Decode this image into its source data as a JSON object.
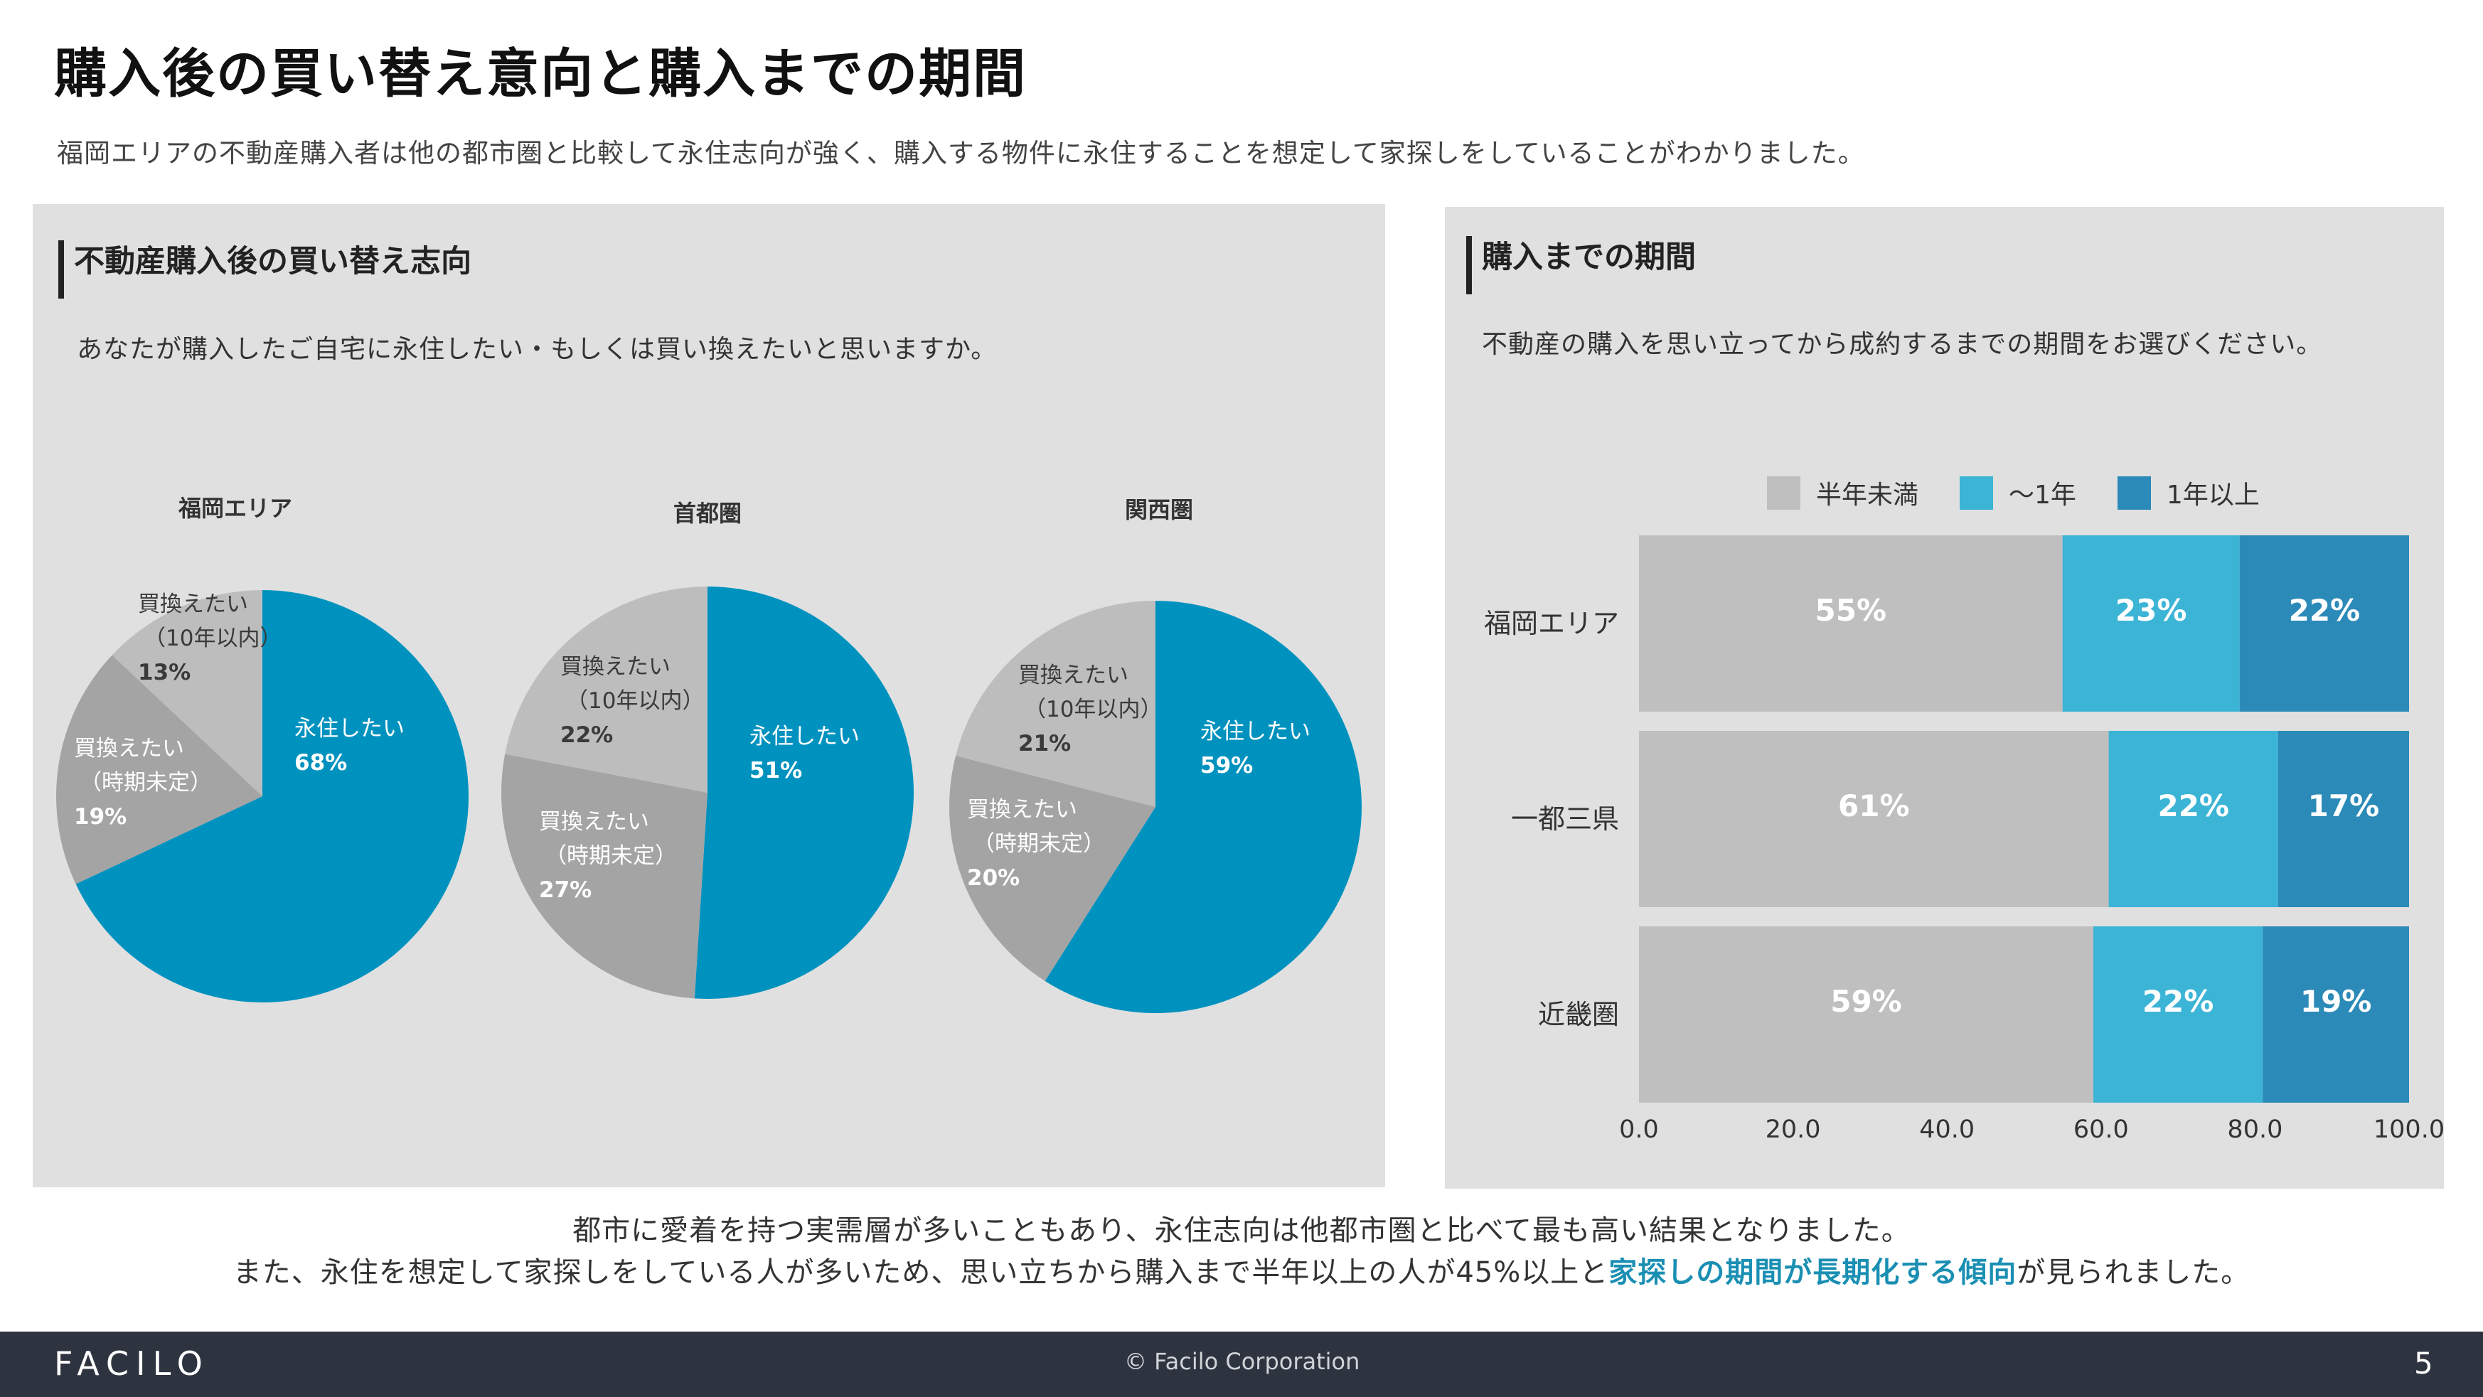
{
  "page": {
    "title": "購入後の買い替え意向と購入までの期間",
    "subtitle": "福岡エリアの不動産購入者は他の都市圏と比較して永住志向が強く、購入する物件に永住することを想定して家探しをしていることがわかりました。"
  },
  "left_panel": {
    "heading": "不動産購入後の買い替え志向",
    "question": "あなたが購入したご自宅に永住したい・もしくは買い換えたいと思いますか。"
  },
  "right_panel": {
    "heading": "購入までの期間",
    "question": "不動産の購入を思い立ってから成約するまでの期間をお選びください。"
  },
  "chart_data": [
    {
      "type": "pie",
      "title": "福岡エリア",
      "slices": [
        {
          "label": "永住したい",
          "value": 68,
          "pct_label": "68%",
          "color": "#0092bf"
        },
        {
          "label": "買換えたい（時期未定）",
          "line1": "買換えたい",
          "line2": "（時期未定）",
          "value": 19,
          "pct_label": "19%",
          "color": "#a4a4a4"
        },
        {
          "label": "買換えたい（10年以内）",
          "line1": "買換えたい",
          "line2": "（10年以内）",
          "value": 13,
          "pct_label": "13%",
          "color": "#bdbdbd"
        }
      ]
    },
    {
      "type": "pie",
      "title": "首都圏",
      "slices": [
        {
          "label": "永住したい",
          "value": 51,
          "pct_label": "51%",
          "color": "#0092bf"
        },
        {
          "label": "買換えたい（時期未定）",
          "line1": "買換えたい",
          "line2": "（時期未定）",
          "value": 27,
          "pct_label": "27%",
          "color": "#a4a4a4"
        },
        {
          "label": "買換えたい（10年以内）",
          "line1": "買換えたい",
          "line2": "（10年以内）",
          "value": 22,
          "pct_label": "22%",
          "color": "#bdbdbd"
        }
      ]
    },
    {
      "type": "pie",
      "title": "関西圏",
      "slices": [
        {
          "label": "永住したい",
          "value": 59,
          "pct_label": "59%",
          "color": "#0092bf"
        },
        {
          "label": "買換えたい（時期未定）",
          "line1": "買換えたい",
          "line2": "（時期未定）",
          "value": 20,
          "pct_label": "20%",
          "color": "#a4a4a4"
        },
        {
          "label": "買換えたい（10年以内）",
          "line1": "買換えたい",
          "line2": "（10年以内）",
          "value": 21,
          "pct_label": "21%",
          "color": "#bdbdbd"
        }
      ]
    },
    {
      "type": "bar",
      "orientation": "horizontal",
      "stacked": true,
      "categories": [
        "福岡エリア",
        "一都三県",
        "近畿圏"
      ],
      "series": [
        {
          "name": "半年未満",
          "values": [
            55,
            61,
            59
          ],
          "labels": [
            "55%",
            "61%",
            "59%"
          ],
          "color": "#bfbfbf"
        },
        {
          "name": "～1年",
          "values": [
            23,
            22,
            22
          ],
          "labels": [
            "23%",
            "22%",
            "22%"
          ],
          "color": "#3bb4d6"
        },
        {
          "name": "1年以上",
          "values": [
            22,
            17,
            19
          ],
          "labels": [
            "22%",
            "17%",
            "19%"
          ],
          "color": "#2b8ab8"
        }
      ],
      "xlim": [
        0,
        100
      ],
      "xticks": [
        "0.0",
        "20.0",
        "40.0",
        "60.0",
        "80.0",
        "100.0"
      ],
      "legend_position": "top"
    }
  ],
  "bottom": {
    "line1": "都市に愛着を持つ実需層が多いこともあり、永住志向は他都市圏と比べて最も高い結果となりました。",
    "line2_pre": "また、永住を想定して家探しをしている人が多いため、思い立ちから購入まで半年以上の人が45%以上と",
    "line2_highlight": "家探しの期間が長期化する傾向",
    "line2_post": "が見られました。"
  },
  "footer": {
    "logo": "FACILO",
    "copyright": "© Facilo Corporation",
    "page_number": "5"
  }
}
